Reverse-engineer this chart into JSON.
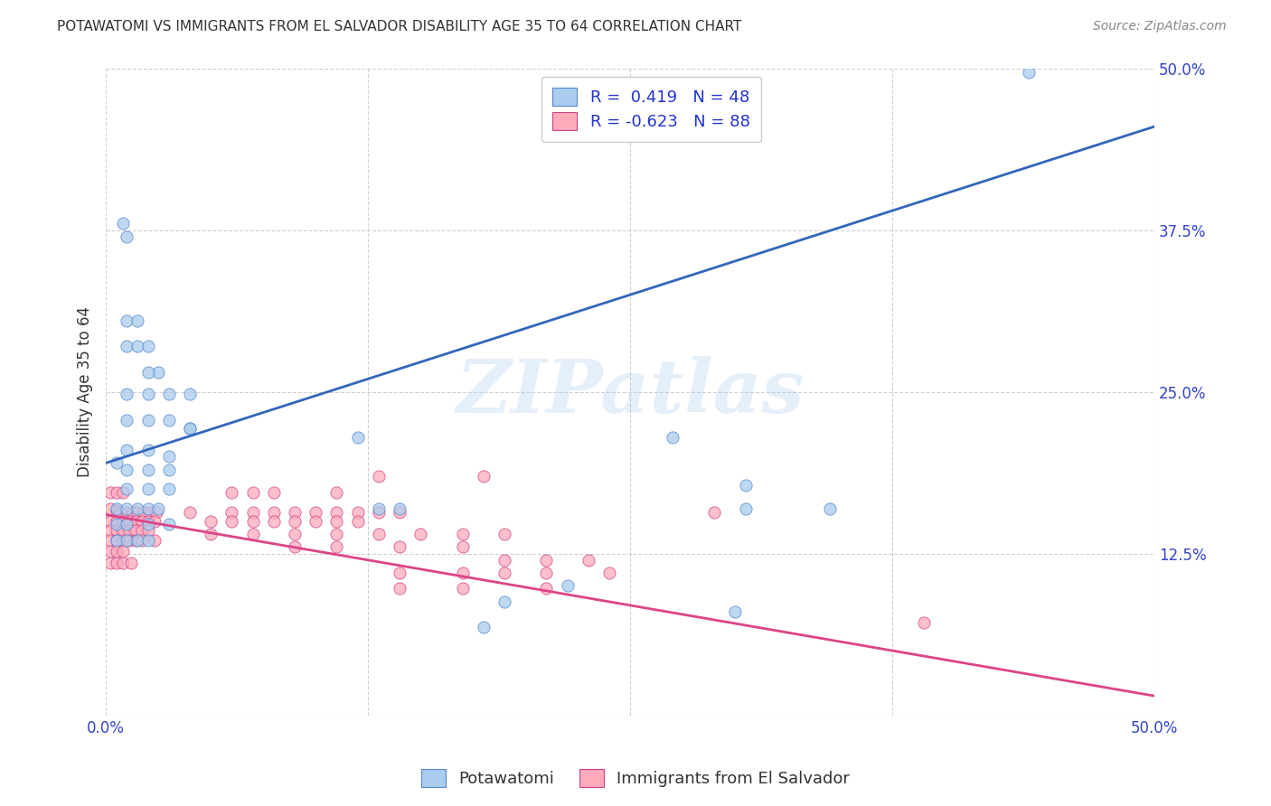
{
  "title": "POTAWATOMI VS IMMIGRANTS FROM EL SALVADOR DISABILITY AGE 35 TO 64 CORRELATION CHART",
  "source": "Source: ZipAtlas.com",
  "ylabel": "Disability Age 35 to 64",
  "xlim": [
    0.0,
    0.5
  ],
  "ylim": [
    0.0,
    0.5
  ],
  "blue_r": 0.419,
  "blue_n": 48,
  "pink_r": -0.623,
  "pink_n": 88,
  "blue_color": "#aaccee",
  "pink_color": "#ffaabb",
  "blue_edge_color": "#5588cc",
  "pink_edge_color": "#cc4488",
  "blue_line_color": "#3366bb",
  "pink_line_color": "#dd4488",
  "blue_line": [
    [
      0.0,
      0.195
    ],
    [
      0.5,
      0.455
    ]
  ],
  "pink_line": [
    [
      0.0,
      0.155
    ],
    [
      0.5,
      0.015
    ]
  ],
  "blue_scatter": [
    [
      0.005,
      0.195
    ],
    [
      0.008,
      0.38
    ],
    [
      0.01,
      0.37
    ],
    [
      0.01,
      0.305
    ],
    [
      0.01,
      0.285
    ],
    [
      0.015,
      0.305
    ],
    [
      0.015,
      0.285
    ],
    [
      0.02,
      0.285
    ],
    [
      0.025,
      0.265
    ],
    [
      0.02,
      0.265
    ],
    [
      0.01,
      0.248
    ],
    [
      0.02,
      0.248
    ],
    [
      0.03,
      0.248
    ],
    [
      0.04,
      0.248
    ],
    [
      0.01,
      0.228
    ],
    [
      0.02,
      0.228
    ],
    [
      0.03,
      0.228
    ],
    [
      0.04,
      0.222
    ],
    [
      0.01,
      0.205
    ],
    [
      0.02,
      0.205
    ],
    [
      0.03,
      0.2
    ],
    [
      0.01,
      0.19
    ],
    [
      0.02,
      0.19
    ],
    [
      0.03,
      0.19
    ],
    [
      0.01,
      0.175
    ],
    [
      0.02,
      0.175
    ],
    [
      0.03,
      0.175
    ],
    [
      0.005,
      0.16
    ],
    [
      0.01,
      0.16
    ],
    [
      0.015,
      0.16
    ],
    [
      0.02,
      0.16
    ],
    [
      0.025,
      0.16
    ],
    [
      0.005,
      0.148
    ],
    [
      0.01,
      0.148
    ],
    [
      0.02,
      0.148
    ],
    [
      0.03,
      0.148
    ],
    [
      0.005,
      0.135
    ],
    [
      0.01,
      0.135
    ],
    [
      0.015,
      0.135
    ],
    [
      0.02,
      0.135
    ],
    [
      0.04,
      0.222
    ],
    [
      0.12,
      0.215
    ],
    [
      0.13,
      0.16
    ],
    [
      0.14,
      0.16
    ],
    [
      0.27,
      0.215
    ],
    [
      0.305,
      0.16
    ],
    [
      0.345,
      0.16
    ],
    [
      0.44,
      0.497
    ],
    [
      0.22,
      0.1
    ],
    [
      0.19,
      0.088
    ],
    [
      0.3,
      0.08
    ],
    [
      0.18,
      0.068
    ],
    [
      0.305,
      0.178
    ]
  ],
  "pink_scatter": [
    [
      0.002,
      0.16
    ],
    [
      0.005,
      0.158
    ],
    [
      0.007,
      0.157
    ],
    [
      0.01,
      0.157
    ],
    [
      0.013,
      0.157
    ],
    [
      0.015,
      0.157
    ],
    [
      0.018,
      0.157
    ],
    [
      0.021,
      0.157
    ],
    [
      0.024,
      0.157
    ],
    [
      0.002,
      0.15
    ],
    [
      0.005,
      0.15
    ],
    [
      0.008,
      0.15
    ],
    [
      0.011,
      0.15
    ],
    [
      0.014,
      0.15
    ],
    [
      0.017,
      0.15
    ],
    [
      0.02,
      0.15
    ],
    [
      0.023,
      0.15
    ],
    [
      0.002,
      0.143
    ],
    [
      0.005,
      0.143
    ],
    [
      0.008,
      0.143
    ],
    [
      0.011,
      0.143
    ],
    [
      0.014,
      0.143
    ],
    [
      0.017,
      0.143
    ],
    [
      0.02,
      0.143
    ],
    [
      0.002,
      0.135
    ],
    [
      0.005,
      0.135
    ],
    [
      0.008,
      0.135
    ],
    [
      0.011,
      0.135
    ],
    [
      0.014,
      0.135
    ],
    [
      0.017,
      0.135
    ],
    [
      0.023,
      0.135
    ],
    [
      0.002,
      0.127
    ],
    [
      0.005,
      0.127
    ],
    [
      0.008,
      0.127
    ],
    [
      0.002,
      0.118
    ],
    [
      0.005,
      0.118
    ],
    [
      0.008,
      0.118
    ],
    [
      0.012,
      0.118
    ],
    [
      0.002,
      0.172
    ],
    [
      0.005,
      0.172
    ],
    [
      0.008,
      0.172
    ],
    [
      0.06,
      0.172
    ],
    [
      0.07,
      0.172
    ],
    [
      0.08,
      0.172
    ],
    [
      0.11,
      0.172
    ],
    [
      0.04,
      0.157
    ],
    [
      0.06,
      0.157
    ],
    [
      0.07,
      0.157
    ],
    [
      0.08,
      0.157
    ],
    [
      0.09,
      0.157
    ],
    [
      0.1,
      0.157
    ],
    [
      0.11,
      0.157
    ],
    [
      0.12,
      0.157
    ],
    [
      0.13,
      0.157
    ],
    [
      0.14,
      0.157
    ],
    [
      0.05,
      0.15
    ],
    [
      0.06,
      0.15
    ],
    [
      0.07,
      0.15
    ],
    [
      0.08,
      0.15
    ],
    [
      0.09,
      0.15
    ],
    [
      0.1,
      0.15
    ],
    [
      0.11,
      0.15
    ],
    [
      0.12,
      0.15
    ],
    [
      0.05,
      0.14
    ],
    [
      0.07,
      0.14
    ],
    [
      0.09,
      0.14
    ],
    [
      0.11,
      0.14
    ],
    [
      0.13,
      0.14
    ],
    [
      0.15,
      0.14
    ],
    [
      0.17,
      0.14
    ],
    [
      0.19,
      0.14
    ],
    [
      0.09,
      0.13
    ],
    [
      0.11,
      0.13
    ],
    [
      0.14,
      0.13
    ],
    [
      0.17,
      0.13
    ],
    [
      0.19,
      0.12
    ],
    [
      0.21,
      0.12
    ],
    [
      0.23,
      0.12
    ],
    [
      0.14,
      0.11
    ],
    [
      0.17,
      0.11
    ],
    [
      0.19,
      0.11
    ],
    [
      0.21,
      0.11
    ],
    [
      0.24,
      0.11
    ],
    [
      0.14,
      0.098
    ],
    [
      0.17,
      0.098
    ],
    [
      0.21,
      0.098
    ],
    [
      0.39,
      0.072
    ],
    [
      0.29,
      0.157
    ],
    [
      0.13,
      0.185
    ],
    [
      0.18,
      0.185
    ]
  ],
  "watermark": "ZIPatlas",
  "bg_color": "#ffffff",
  "grid_color": "#cccccc",
  "title_color": "#333333",
  "tick_color": "#3344cc"
}
